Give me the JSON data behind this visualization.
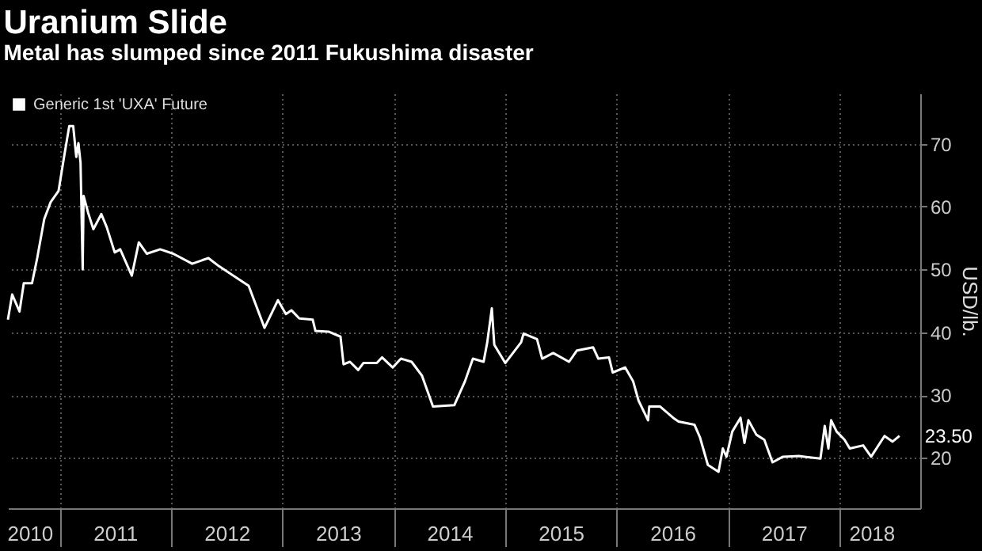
{
  "chart_data": {
    "type": "line",
    "title": "Uranium Slide",
    "subtitle": "Metal has slumped since 2011 Fukushima disaster",
    "ylabel": "USD/lb.",
    "legend": "top left",
    "grid": true,
    "marker": "none",
    "x": [
      "2010-07-16",
      "2010-07-30",
      "2010-08-23",
      "2010-09-06",
      "2010-10-03",
      "2010-10-20",
      "2010-11-12",
      "2010-12-03",
      "2010-12-29",
      "2011-01-16",
      "2011-02-02",
      "2011-02-15",
      "2011-02-25",
      "2011-03-04",
      "2011-03-11",
      "2011-03-18",
      "2011-03-21",
      "2011-04-05",
      "2011-04-22",
      "2011-05-18",
      "2011-06-05",
      "2011-07-01",
      "2011-07-19",
      "2011-08-26",
      "2011-09-18",
      "2011-10-14",
      "2011-11-27",
      "2012-01-09",
      "2012-03-11",
      "2012-05-03",
      "2012-06-07",
      "2012-07-21",
      "2012-09-12",
      "2012-11-03",
      "2012-12-17",
      "2013-01-12",
      "2013-01-30",
      "2013-02-25",
      "2013-04-10",
      "2013-04-19",
      "2013-06-01",
      "2013-07-10",
      "2013-07-20",
      "2013-08-10",
      "2013-09-06",
      "2013-09-23",
      "2013-11-06",
      "2013-11-23",
      "2013-12-28",
      "2014-01-24",
      "2014-02-28",
      "2014-04-03",
      "2014-05-09",
      "2014-07-18",
      "2014-08-22",
      "2014-09-17",
      "2014-10-22",
      "2014-11-03",
      "2014-11-18",
      "2014-11-26",
      "2015-01-01",
      "2015-02-22",
      "2015-03-02",
      "2015-04-15",
      "2015-05-02",
      "2015-06-07",
      "2015-07-29",
      "2015-08-24",
      "2015-10-16",
      "2015-11-02",
      "2015-12-07",
      "2015-12-19",
      "2016-01-29",
      "2016-02-24",
      "2016-03-13",
      "2016-04-13",
      "2016-04-17",
      "2016-05-22",
      "2016-07-04",
      "2016-07-22",
      "2016-09-12",
      "2016-09-30",
      "2016-10-26",
      "2016-11-30",
      "2016-12-14",
      "2016-12-26",
      "2017-01-14",
      "2017-02-10",
      "2017-02-23",
      "2017-03-08",
      "2017-04-03",
      "2017-04-29",
      "2017-05-26",
      "2017-06-29",
      "2017-08-21",
      "2017-10-30",
      "2017-11-13",
      "2017-11-25",
      "2017-12-04",
      "2017-12-22",
      "2018-01-17",
      "2018-02-03",
      "2018-03-19",
      "2018-04-14",
      "2018-05-28",
      "2018-06-23",
      "2018-07-16"
    ],
    "series": [
      {
        "name": "Generic 1st 'UXA' Future",
        "color": "#ffffff",
        "values": [
          42.0,
          46.0,
          43.3,
          47.8,
          47.8,
          51.8,
          58.0,
          60.7,
          62.5,
          67.9,
          72.8,
          72.8,
          67.9,
          70.1,
          67.0,
          50.0,
          61.7,
          59.0,
          56.4,
          58.8,
          56.7,
          52.7,
          53.2,
          49.0,
          54.3,
          52.5,
          53.2,
          52.5,
          50.9,
          51.8,
          50.5,
          49.1,
          47.4,
          40.7,
          45.1,
          42.9,
          43.5,
          42.2,
          42.0,
          40.2,
          40.1,
          39.3,
          34.9,
          35.3,
          34.0,
          35.1,
          35.1,
          36.0,
          34.4,
          35.8,
          35.3,
          33.1,
          28.2,
          28.4,
          32.2,
          35.8,
          35.3,
          38.4,
          43.8,
          38.0,
          35.1,
          38.4,
          39.8,
          38.9,
          35.8,
          36.7,
          35.3,
          37.1,
          37.6,
          35.8,
          36.0,
          33.6,
          34.4,
          32.2,
          29.1,
          26.0,
          28.2,
          28.2,
          26.4,
          25.8,
          25.3,
          23.3,
          18.9,
          17.8,
          21.5,
          20.2,
          24.2,
          26.4,
          22.4,
          26.0,
          23.7,
          22.9,
          19.3,
          20.2,
          20.3,
          19.9,
          25.1,
          21.5,
          26.0,
          24.2,
          22.9,
          21.5,
          22.0,
          20.2,
          23.5,
          22.6,
          23.5
        ]
      }
    ],
    "xlim": [
      "2010-07-16",
      "2018-09-22"
    ],
    "xticks": [
      {
        "value": "2010-09-25",
        "label": "2010"
      },
      {
        "value": "2011-01-01",
        "label": null
      },
      {
        "value": "2011-07-02",
        "label": "2011"
      },
      {
        "value": "2012-01-01",
        "label": null
      },
      {
        "value": "2012-07-02",
        "label": "2012"
      },
      {
        "value": "2013-01-01",
        "label": null
      },
      {
        "value": "2013-07-02",
        "label": "2013"
      },
      {
        "value": "2014-01-01",
        "label": null
      },
      {
        "value": "2014-07-02",
        "label": "2014"
      },
      {
        "value": "2015-01-01",
        "label": null
      },
      {
        "value": "2015-07-02",
        "label": "2015"
      },
      {
        "value": "2016-01-01",
        "label": null
      },
      {
        "value": "2016-07-02",
        "label": "2016"
      },
      {
        "value": "2017-01-01",
        "label": null
      },
      {
        "value": "2017-07-02",
        "label": "2017"
      },
      {
        "value": "2018-01-01",
        "label": null
      },
      {
        "value": "2018-04-15",
        "label": "2018"
      }
    ],
    "ylim": [
      12,
      78
    ],
    "yticks": [
      20,
      30,
      40,
      50,
      60,
      70
    ],
    "annotations": [
      {
        "text": "23.50",
        "x": "2018-07-16",
        "y": 23.5
      }
    ]
  }
}
